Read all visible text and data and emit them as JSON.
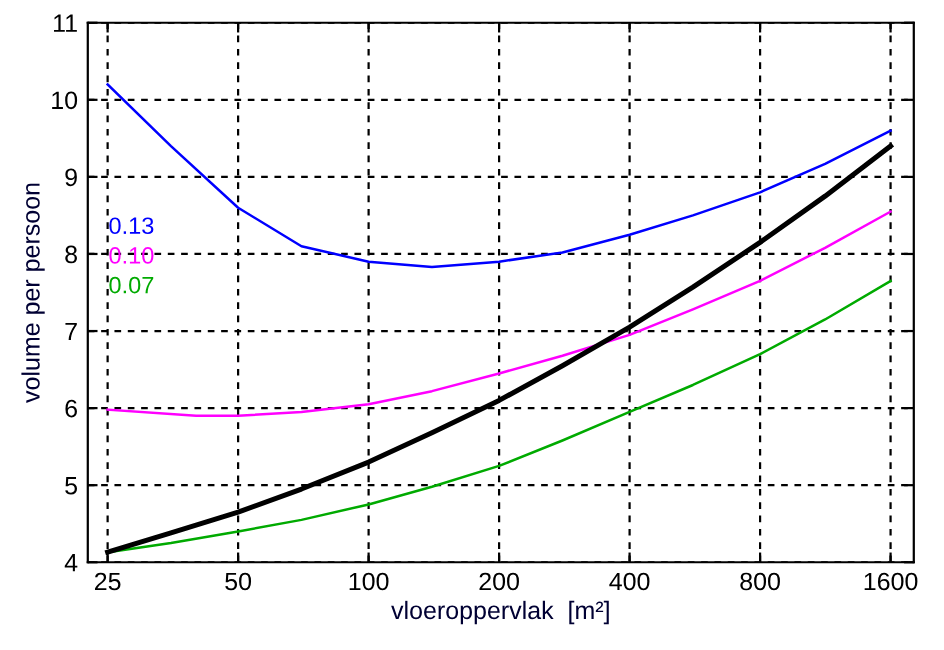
{
  "chart_data": {
    "type": "line",
    "xlabel": "vloeroppervlak  [m²]",
    "ylabel": "volume per persoon",
    "log": "x",
    "grid": true,
    "line_style": "solid",
    "marker": "none",
    "xlim": [
      22.5,
      1810
    ],
    "xticks": [
      25,
      50,
      100,
      200,
      400,
      800,
      1600
    ],
    "ylim": [
      4,
      11
    ],
    "yticks": [
      4,
      5,
      6,
      7,
      8,
      9,
      10,
      11
    ],
    "series": [
      {
        "name": "0.13",
        "color": "#0000ff",
        "x": [
          25,
          35,
          50,
          70,
          100,
          140,
          200,
          280,
          400,
          560,
          800,
          1130,
          1600
        ],
        "values": [
          10.2,
          9.4,
          8.6,
          8.1,
          7.9,
          7.83,
          7.9,
          8.02,
          8.25,
          8.5,
          8.8,
          9.17,
          9.6
        ]
      },
      {
        "name": "0.10",
        "color": "#ff00ff",
        "x": [
          25,
          40,
          50,
          70,
          100,
          140,
          200,
          280,
          400,
          560,
          800,
          1130,
          1600
        ],
        "values": [
          5.98,
          5.9,
          5.9,
          5.95,
          6.05,
          6.22,
          6.45,
          6.68,
          6.95,
          7.28,
          7.65,
          8.08,
          8.55
        ]
      },
      {
        "name": "0.07",
        "color": "#00aa00",
        "x": [
          25,
          35,
          50,
          70,
          100,
          140,
          200,
          280,
          400,
          560,
          800,
          1130,
          1600
        ],
        "values": [
          4.13,
          4.25,
          4.4,
          4.55,
          4.75,
          4.98,
          5.25,
          5.58,
          5.95,
          6.3,
          6.7,
          7.15,
          7.65
        ]
      },
      {
        "color": "#000000",
        "x": [
          25,
          35,
          50,
          70,
          100,
          140,
          200,
          280,
          400,
          560,
          800,
          1130,
          1600
        ],
        "values": [
          4.13,
          4.38,
          4.65,
          4.95,
          5.3,
          5.68,
          6.1,
          6.55,
          7.05,
          7.57,
          8.15,
          8.75,
          9.4
        ]
      }
    ]
  }
}
